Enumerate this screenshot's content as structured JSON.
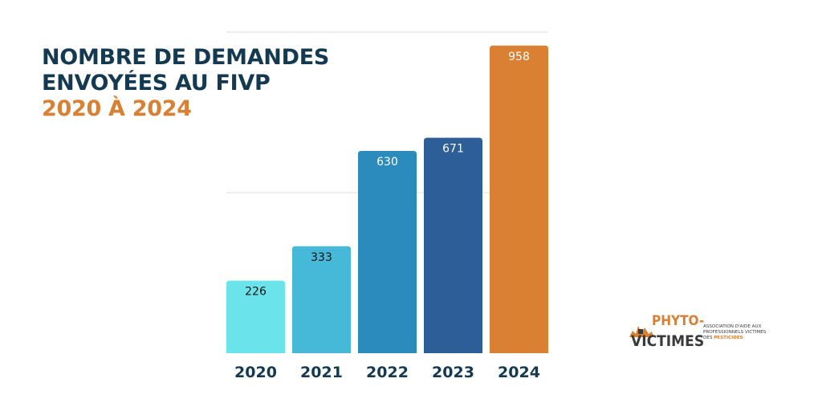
{
  "title": {
    "line1": "NOMBRE DE DEMANDES",
    "line2": "ENVOYÉES AU FIVP",
    "years": "2020 À 2024"
  },
  "chart_data": {
    "type": "bar",
    "categories": [
      "2020",
      "2021",
      "2022",
      "2023",
      "2024"
    ],
    "values": [
      226,
      333,
      630,
      671,
      958
    ],
    "data_labels": [
      "226",
      "333",
      "630",
      "671",
      "958"
    ],
    "bar_colors": [
      "#6ae4ea",
      "#45b9d7",
      "#2b8bbc",
      "#2e5e98",
      "#d98033"
    ],
    "label_colors": [
      "#111111",
      "#111111",
      "#ffffff",
      "#ffffff",
      "#ffffff"
    ],
    "ylim": [
      0,
      1000
    ],
    "gridlines": [
      500,
      1000
    ],
    "title": "NOMBRE DE DEMANDES ENVOYÉES AU FIVP 2020 À 2024",
    "xlabel": "",
    "ylabel": "",
    "grid": true,
    "legend": false
  },
  "logo": {
    "word1": "PHYTO-",
    "word2": "VICTIMES",
    "tagline": "ASSOCIATION D'AIDE AUX PROFESSIONNELS VICTIMES DES",
    "tagline_accent": "PESTICIDES"
  }
}
